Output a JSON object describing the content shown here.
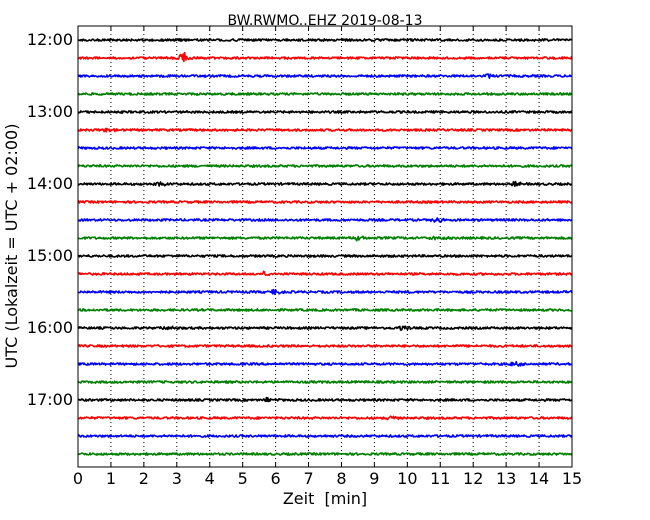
{
  "chart_data": {
    "type": "line",
    "subtype": "seismogram-dayplot",
    "title": "BW.RWMO..EHZ 2019-08-13",
    "xlabel": "Zeit  [min]",
    "ylabel": "UTC (Lokalzeit = UTC + 02:00)",
    "xlim": [
      0,
      15
    ],
    "x_ticks": [
      "0",
      "1",
      "2",
      "3",
      "4",
      "5",
      "6",
      "7",
      "8",
      "9",
      "10",
      "11",
      "12",
      "13",
      "14",
      "15"
    ],
    "y_ticks": [
      "12:00",
      "13:00",
      "14:00",
      "15:00",
      "16:00",
      "17:00"
    ],
    "grid": "vertical-dotted",
    "trace_interval_min": 15,
    "color_cycle": [
      "#000000",
      "#ff0000",
      "#0000ff",
      "#008000"
    ],
    "traces": [
      {
        "start": "12:00",
        "color": "#000000"
      },
      {
        "start": "12:15",
        "color": "#ff0000"
      },
      {
        "start": "12:30",
        "color": "#0000ff"
      },
      {
        "start": "12:45",
        "color": "#008000"
      },
      {
        "start": "13:00",
        "color": "#000000"
      },
      {
        "start": "13:15",
        "color": "#ff0000"
      },
      {
        "start": "13:30",
        "color": "#0000ff"
      },
      {
        "start": "13:45",
        "color": "#008000"
      },
      {
        "start": "14:00",
        "color": "#000000"
      },
      {
        "start": "14:15",
        "color": "#ff0000"
      },
      {
        "start": "14:30",
        "color": "#0000ff"
      },
      {
        "start": "14:45",
        "color": "#008000"
      },
      {
        "start": "15:00",
        "color": "#000000"
      },
      {
        "start": "15:15",
        "color": "#ff0000"
      },
      {
        "start": "15:30",
        "color": "#0000ff"
      },
      {
        "start": "15:45",
        "color": "#008000"
      },
      {
        "start": "16:00",
        "color": "#000000"
      },
      {
        "start": "16:15",
        "color": "#ff0000"
      },
      {
        "start": "16:30",
        "color": "#0000ff"
      },
      {
        "start": "16:45",
        "color": "#008000"
      },
      {
        "start": "17:00",
        "color": "#000000"
      },
      {
        "start": "17:15",
        "color": "#ff0000"
      },
      {
        "start": "17:30",
        "color": "#0000ff"
      },
      {
        "start": "17:45",
        "color": "#008000"
      }
    ],
    "events": [
      {
        "trace": "12:15",
        "minute": 3.2,
        "amplitude": "large"
      },
      {
        "trace": "12:30",
        "minute": 12.5,
        "amplitude": "small"
      },
      {
        "trace": "13:15",
        "minute": 0.9,
        "amplitude": "small"
      },
      {
        "trace": "14:00",
        "minute": 2.5,
        "amplitude": "small"
      },
      {
        "trace": "14:00",
        "minute": 13.3,
        "amplitude": "small"
      },
      {
        "trace": "14:30",
        "minute": 10.9,
        "amplitude": "small"
      },
      {
        "trace": "14:45",
        "minute": 8.5,
        "amplitude": "small"
      },
      {
        "trace": "14:45",
        "minute": 10.9,
        "amplitude": "small"
      },
      {
        "trace": "15:15",
        "minute": 5.7,
        "amplitude": "small"
      },
      {
        "trace": "15:30",
        "minute": 6.0,
        "amplitude": "small"
      },
      {
        "trace": "16:00",
        "minute": 2.8,
        "amplitude": "small"
      },
      {
        "trace": "16:00",
        "minute": 9.9,
        "amplitude": "small"
      },
      {
        "trace": "16:30",
        "minute": 13.3,
        "amplitude": "small"
      },
      {
        "trace": "17:00",
        "minute": 5.8,
        "amplitude": "small"
      },
      {
        "trace": "17:15",
        "minute": 9.5,
        "amplitude": "small"
      }
    ]
  }
}
